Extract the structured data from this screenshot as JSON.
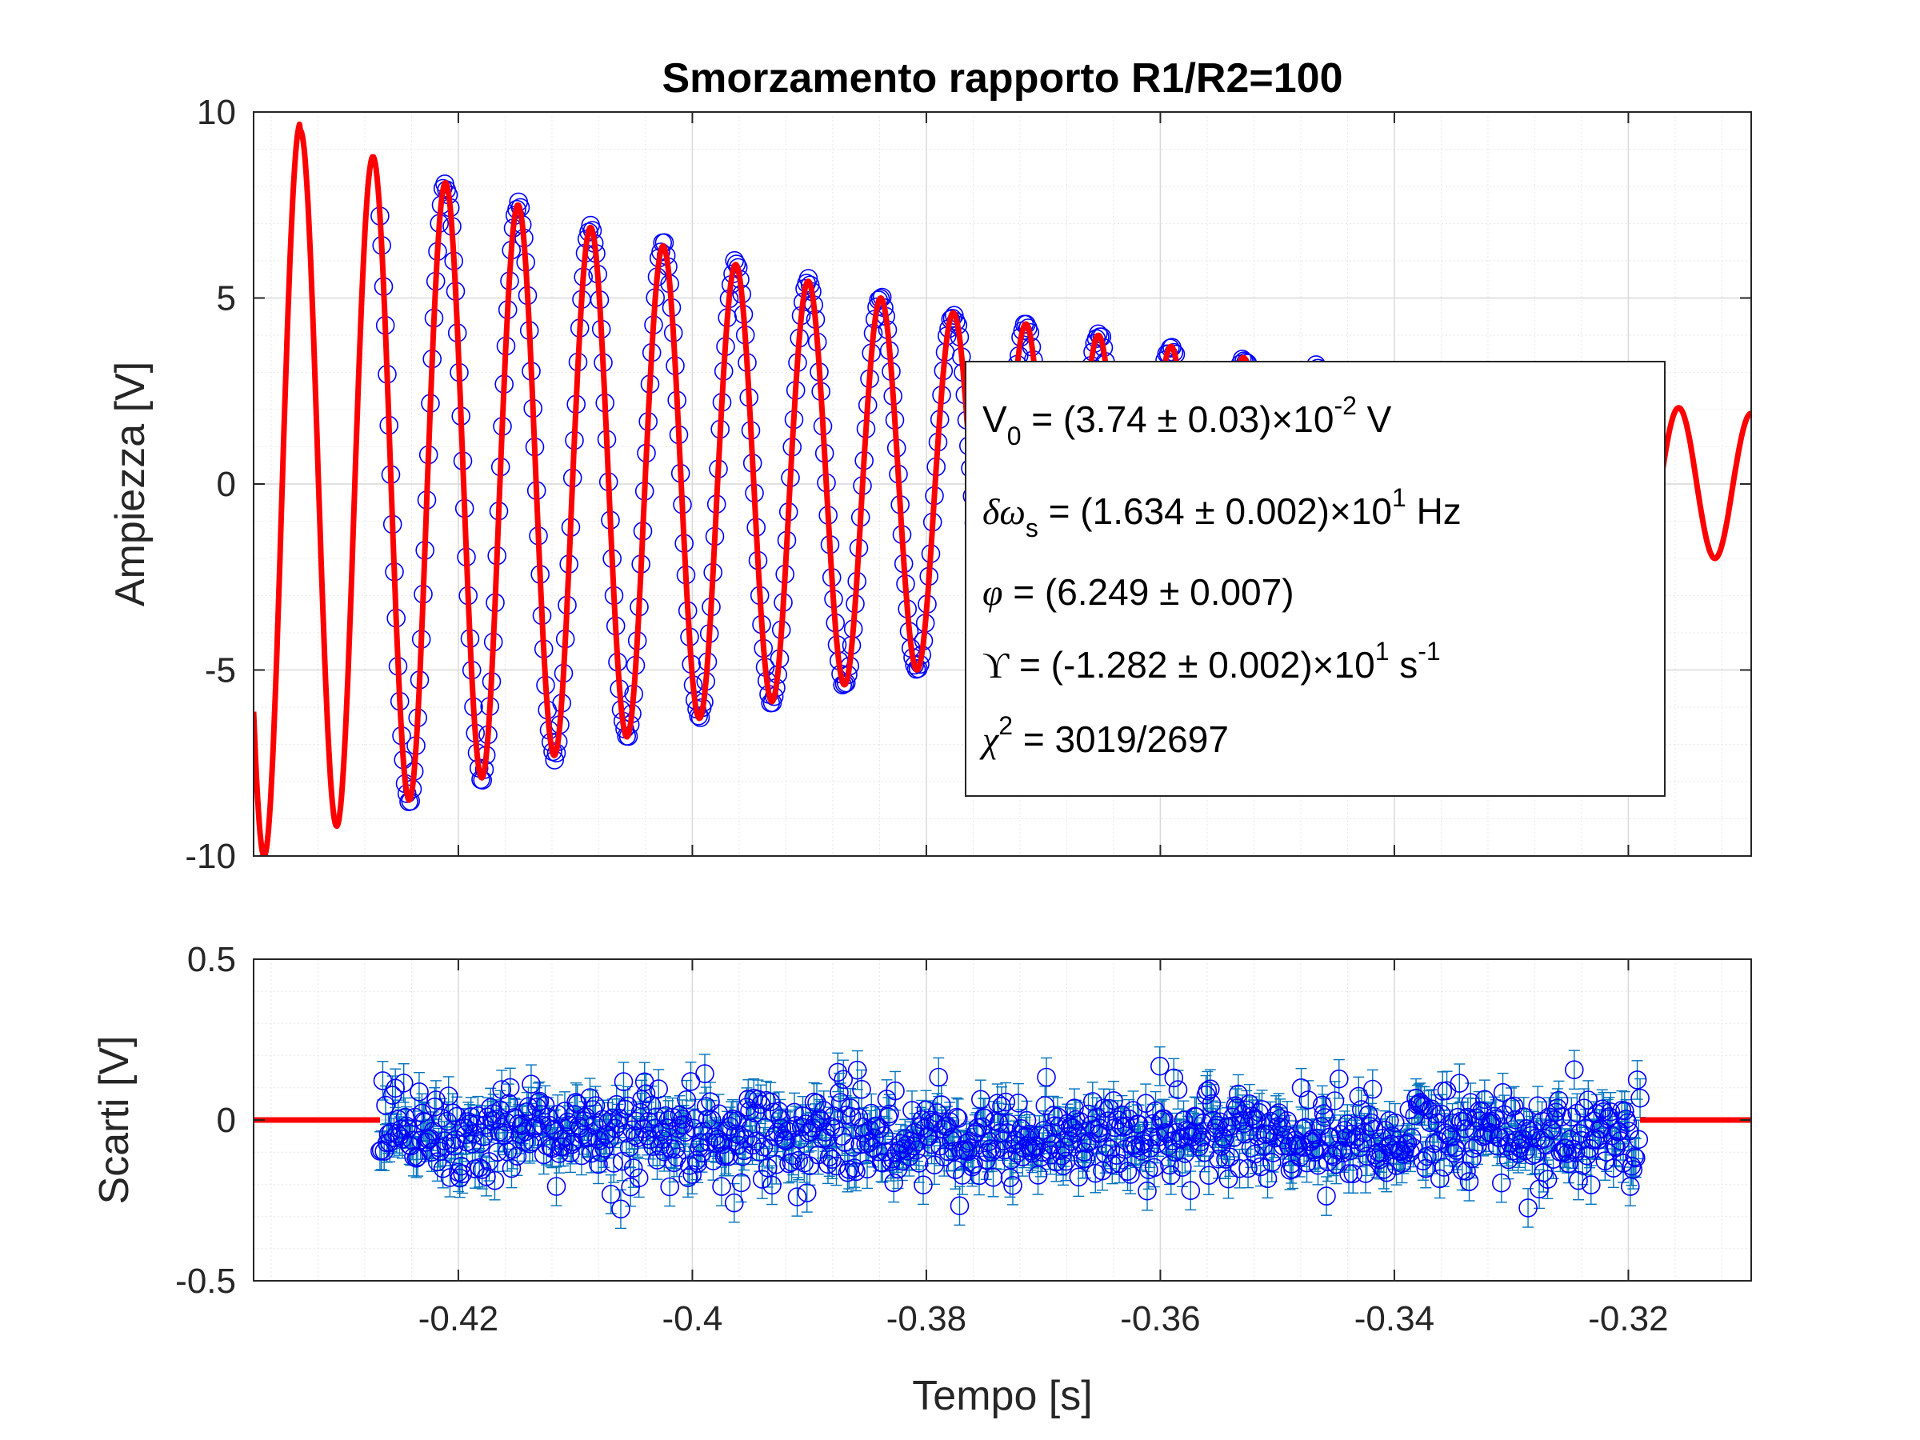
{
  "chart_data": [
    {
      "type": "scatter",
      "panel": "top",
      "title": "Smorzamento rapporto R1/R2=100",
      "xlabel": "",
      "ylabel": "Ampiezza [V]",
      "xlim": [
        -0.4375,
        -0.3095
      ],
      "ylim": [
        -10.0,
        10.0
      ],
      "yticks": [
        10,
        5,
        0,
        -5,
        -10
      ],
      "ytick_labels": [
        "10",
        "5",
        "0",
        "-5",
        "-10"
      ],
      "xticks": [
        -0.42,
        -0.4,
        -0.38,
        -0.36,
        -0.34,
        -0.32
      ],
      "grid": true,
      "minor_grid": true,
      "series": [
        {
          "kind": "points",
          "marker": "open-circle",
          "color": "#0000ff",
          "x_range": [
            -0.4267,
            -0.319
          ],
          "model": {
            "form": "damped-sine",
            "peak_times": [
              -0.4335,
              -0.4273,
              -0.4211,
              -0.4149,
              -0.4088,
              -0.4026,
              -0.3965,
              -0.3903,
              -0.3841,
              -0.378,
              -0.3718,
              -0.3656,
              -0.3595,
              -0.3533,
              -0.3472,
              -0.341,
              -0.3348,
              -0.3287,
              -0.3225,
              -0.3164,
              -0.3102
            ],
            "peak_values": [
              9.5,
              8.8,
              8.1,
              7.5,
              6.9,
              6.4,
              5.9,
              5.45,
              5.0,
              4.6,
              4.3,
              4.0,
              3.7,
              3.4,
              3.1,
              2.9,
              2.65,
              2.45,
              2.25,
              2.05,
              1.9
            ],
            "trough_values": [
              -10.0,
              -9.2,
              -8.5,
              -7.9,
              -7.3,
              -6.8,
              -6.3,
              -5.85,
              -5.4,
              -5.0,
              -4.65,
              -4.3,
              -4.0,
              -3.7,
              -3.4,
              -3.15,
              -2.9,
              -2.7,
              -2.45,
              -2.25,
              -2.0
            ]
          }
        },
        {
          "kind": "fit-line",
          "color": "#ff0000",
          "x_range": [
            -0.4375,
            -0.3095
          ]
        }
      ],
      "legend": {
        "placement": "inside-right",
        "lines": [
          {
            "main": "V",
            "sub": "0",
            "rest": " = (3.74 ± 0.03)×10",
            "sup": "-2",
            "tail": " V"
          },
          {
            "main": "δω",
            "sub": "s",
            "rest": " = (1.634 ± 0.002)×10",
            "sup": "1",
            "tail": " Hz"
          },
          {
            "main": "φ",
            "sub": "",
            "rest": " = (6.249 ± 0.007)",
            "sup": "",
            "tail": ""
          },
          {
            "main": "ϒ",
            "sub": "",
            "rest": " = (-1.282 ± 0.002)×10",
            "sup": "1",
            "tail": " s",
            "sup2": "-1"
          },
          {
            "main": "χ",
            "sub": "",
            "rest": " = 3019/2697",
            "sup": "2",
            "sup_after_main": true,
            "tail": ""
          }
        ]
      }
    },
    {
      "type": "scatter",
      "panel": "bottom",
      "title": "",
      "xlabel": "Tempo [s]",
      "ylabel": "Scarti [V]",
      "xlim": [
        -0.4375,
        -0.3095
      ],
      "ylim": [
        -0.5,
        0.5
      ],
      "yticks": [
        0.5,
        0,
        -0.5
      ],
      "ytick_labels": [
        "0.5",
        "0",
        "-0.5"
      ],
      "xticks": [
        -0.42,
        -0.4,
        -0.38,
        -0.36,
        -0.34,
        -0.32
      ],
      "xtick_labels": [
        "-0.42",
        "-0.4",
        "-0.38",
        "-0.36",
        "-0.34",
        "-0.32"
      ],
      "grid": true,
      "minor_grid": true,
      "series": [
        {
          "kind": "residuals",
          "marker": "open-circle",
          "color": "#0000ff",
          "errorbar_color": "#0072bd",
          "x_range": [
            -0.4267,
            -0.319
          ],
          "y_center": -0.05,
          "y_spread": 0.1,
          "errorbar_halfwidth": 0.06
        },
        {
          "kind": "zero-line",
          "color": "#ff0000",
          "y": 0
        }
      ]
    }
  ]
}
